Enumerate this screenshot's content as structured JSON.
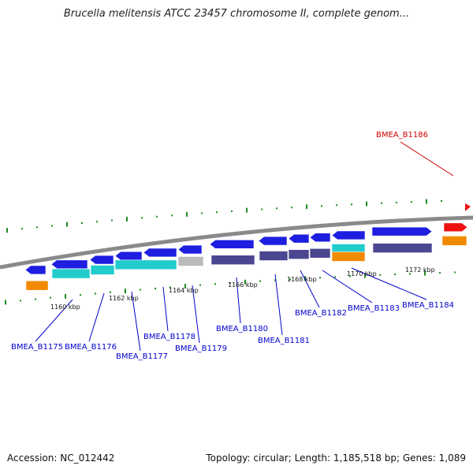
{
  "title": "Brucella melitensis ATCC 23457 chromosome II, complete genom...",
  "accession": "Accession: NC_012442",
  "topology": "Topology: circular; Length: 1,185,518 bp; Genes: 1,089",
  "colors": {
    "cds_blue": "#1e1ee0",
    "cds_highlight": "#ee1111",
    "feature_purple": "#4b4690",
    "feature_cyan": "#22cccc",
    "feature_orange": "#f28a00",
    "feature_gray": "#bbbbbb",
    "backbone": "#8a8a8a",
    "tick_green": "#228b22",
    "label_blue": "#0000cc",
    "label_red": "#cc0000"
  },
  "scale_labels": [
    "1160 kbp",
    "1162 kbp",
    "1164 kbp",
    "1166 kbp",
    "1168 kbp",
    "1170 kbp",
    "1172 kbp"
  ],
  "gene_labels": [
    {
      "text": "BMEA_B1175",
      "highlight": false
    },
    {
      "text": "BMEA_B1176",
      "highlight": false
    },
    {
      "text": "BMEA_B1177",
      "highlight": false
    },
    {
      "text": "BMEA_B1178",
      "highlight": false
    },
    {
      "text": "BMEA_B1179",
      "highlight": false
    },
    {
      "text": "BMEA_B1180",
      "highlight": false
    },
    {
      "text": "BMEA_B1181",
      "highlight": false
    },
    {
      "text": "BMEA_B1182",
      "highlight": false
    },
    {
      "text": "BMEA_B1183",
      "highlight": false
    },
    {
      "text": "BMEA_B1184",
      "highlight": false
    },
    {
      "text": "BMEA_B1186",
      "highlight": true
    }
  ]
}
